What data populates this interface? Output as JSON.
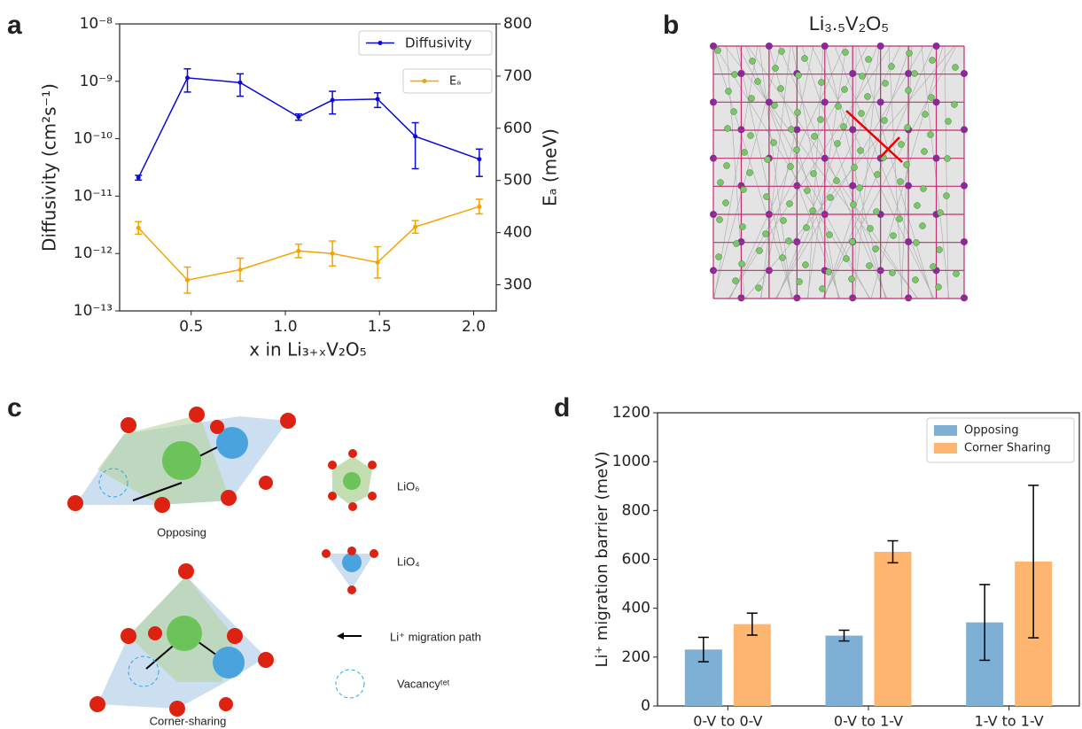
{
  "panel_labels": [
    "a",
    "b",
    "c",
    "d"
  ],
  "structure": {
    "title": "Li₃.₅V₂O₅"
  },
  "diagram": {
    "captions": [
      "Opposing",
      "Corner-sharing"
    ],
    "legend": [
      "LiO₆",
      "LiO₄",
      "Li⁺ migration path",
      "Vacancyᵗᵉᵗ"
    ]
  },
  "chart_data": [
    {
      "type": "line",
      "xlabel": "x in Li₃₊ₓV₂O₅",
      "ylabel": "Diffusivity (cm²s⁻¹)",
      "y2label": "Eₐ (meV)",
      "x": [
        0.22,
        0.48,
        0.76,
        1.07,
        1.25,
        1.49,
        1.69,
        2.03
      ],
      "series": [
        {
          "name": "Diffusivity",
          "color": "#0a0ad2",
          "values": [
            2.1e-11,
            1.15e-09,
            9.5e-10,
            2.4e-10,
            4.7e-10,
            4.9e-10,
            1.1e-10,
            4.4e-11
          ],
          "errors": [
            2e-12,
            5e-10,
            4e-10,
            3e-11,
            2e-10,
            1.4e-10,
            8e-11,
            2.2e-11
          ]
        },
        {
          "name": "Eₐ",
          "color": "#f5a300",
          "axis": "y2",
          "values": [
            409,
            309,
            329,
            365,
            360,
            343,
            411,
            450
          ],
          "errors": [
            12,
            25,
            22,
            13,
            24,
            30,
            12,
            14
          ]
        }
      ],
      "xlim": [
        0.12,
        2.12
      ],
      "xticks": [
        0.5,
        {
          "value": 1,
          "label": "1.0"
        },
        1.5,
        {
          "value": 2,
          "label": "2.0"
        }
      ],
      "ylim": [
        1e-13,
        1e-08
      ],
      "y_scale": "log",
      "yticks": [
        {
          "value": 1e-13,
          "label": "10⁻¹³"
        },
        {
          "value": 1e-12,
          "label": "10⁻¹²"
        },
        {
          "value": 1e-11,
          "label": "10⁻¹¹"
        },
        {
          "value": 1e-10,
          "label": "10⁻¹⁰"
        },
        {
          "value": 1e-09,
          "label": "10⁻⁹"
        },
        {
          "value": 1e-08,
          "label": "10⁻⁸"
        }
      ],
      "y2lim": [
        250,
        800
      ],
      "y2ticks": [
        300,
        400,
        500,
        600,
        700,
        800
      ],
      "legend": "upper right"
    },
    {
      "type": "bar",
      "ylabel": "Li⁺ migration barrier (meV)",
      "categories": [
        "0-V to 0-V",
        "0-V to 1-V",
        "1-V to 1-V"
      ],
      "series": [
        {
          "name": "Opposing",
          "color": "#7eb0d5",
          "values": [
            231,
            288,
            342
          ],
          "errors": [
            50,
            22,
            155
          ]
        },
        {
          "name": "Corner Sharing",
          "color": "#fdb56f",
          "values": [
            335,
            631,
            591
          ],
          "errors": [
            45,
            45,
            312
          ]
        }
      ],
      "ylim": [
        0,
        1200
      ],
      "yticks": [
        0,
        200,
        400,
        600,
        800,
        1000,
        1200
      ],
      "legend": "upper right"
    }
  ]
}
